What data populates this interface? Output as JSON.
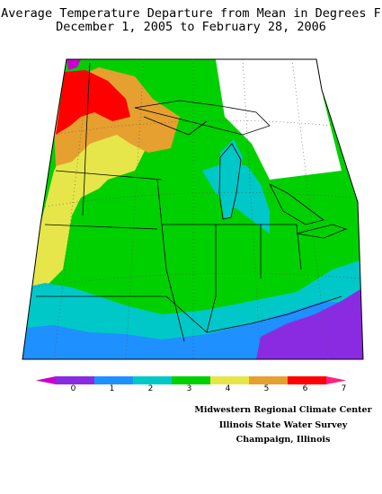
{
  "title": {
    "line1": "Average Temperature Departure from Mean in Degrees F",
    "line2": "December 1, 2005 to February 28, 2006"
  },
  "legend": {
    "ticks": [
      "0",
      "1",
      "2",
      "3",
      "4",
      "5",
      "6",
      "7"
    ],
    "colors": [
      "#cc00cc",
      "#8a2be2",
      "#1e90ff",
      "#00c8c8",
      "#00d000",
      "#e6e64a",
      "#e6a030",
      "#ff0000",
      "#ff2080"
    ]
  },
  "credits": {
    "line1": "Midwestern Regional Climate Center",
    "line2": "Illinois State Water Survey",
    "line3": "Champaign, Illinois"
  }
}
